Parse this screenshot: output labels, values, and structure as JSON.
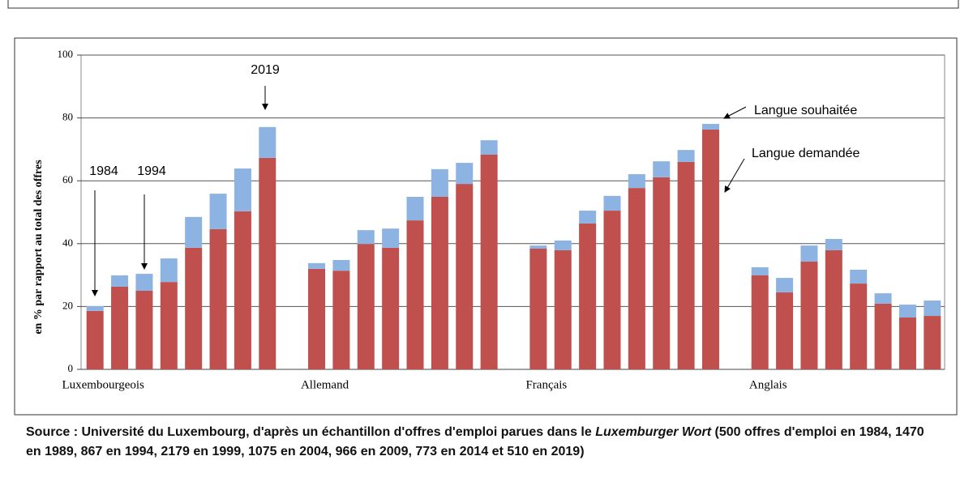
{
  "chart_data": {
    "type": "stacked_bar",
    "ylabel": "en % par rapport au total des offres",
    "categories": [
      "Luxembourgeois",
      null,
      null,
      null,
      null,
      null,
      null,
      null,
      null,
      "Allemand",
      null,
      null,
      null,
      null,
      null,
      null,
      null,
      null,
      "Français",
      null,
      null,
      null,
      null,
      null,
      null,
      null,
      null,
      "Anglais",
      null,
      null,
      null,
      null,
      null,
      null,
      null
    ],
    "series": [
      {
        "name": "Langue demandée",
        "color": "#c0504d",
        "values": [
          18.6,
          26.3,
          25.0,
          27.8,
          38.7,
          44.6,
          50.3,
          67.3,
          null,
          32.0,
          31.4,
          39.9,
          38.7,
          47.4,
          54.9,
          59.0,
          68.3,
          null,
          38.4,
          37.9,
          46.4,
          50.5,
          57.7,
          61.1,
          66.0,
          76.3,
          null,
          29.9,
          24.5,
          34.3,
          37.9,
          27.3,
          20.9,
          16.5,
          17.0
        ]
      },
      {
        "name": "Langue souhaitée",
        "color": "#8db3e2",
        "values": [
          1.5,
          3.6,
          5.4,
          7.5,
          9.8,
          11.3,
          13.6,
          9.8,
          null,
          1.8,
          3.4,
          4.4,
          6.1,
          7.5,
          8.8,
          6.7,
          4.6,
          null,
          1.0,
          3.1,
          4.1,
          4.7,
          4.4,
          5.1,
          3.8,
          1.8,
          null,
          2.6,
          4.6,
          5.1,
          3.6,
          4.4,
          3.3,
          4.1,
          4.9
        ]
      }
    ],
    "ylim": [
      0,
      100
    ],
    "yticks": [
      0,
      20,
      40,
      60,
      80,
      100
    ],
    "grid": true,
    "annotations": [
      "1984",
      "1994",
      "2019"
    ],
    "source": [
      "Source : Université du Luxembourg, d'après un échantillon d'offres d'emploi parues dans le ",
      "Luxemburger Wort",
      " (500 offres d'emploi en 1984, 1470 en 1989, 867 en 1994, 2179 en 1999, 1075 en 2004, 966 en 2009, 773 en 2014 et 510 en 2019)"
    ]
  }
}
